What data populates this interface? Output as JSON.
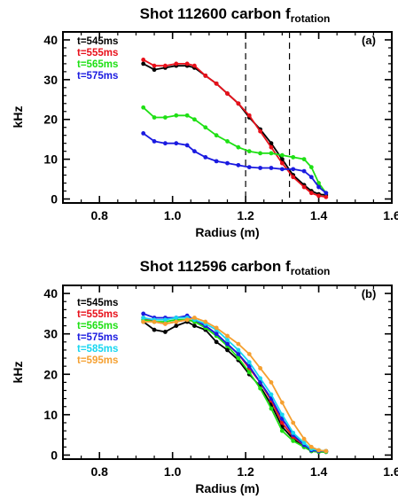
{
  "chart_data": [
    {
      "type": "line",
      "title_main": "Shot 112600 carbon f",
      "title_sub": "rotation",
      "panel_label": "(a)",
      "xlabel": "Radius (m)",
      "ylabel": "kHz",
      "xlim": [
        0.7,
        1.6
      ],
      "ylim": [
        -1,
        42
      ],
      "xticks": [
        "0.8",
        "1.0",
        "1.2",
        "1.4",
        "1.6"
      ],
      "yticks": [
        "0",
        "10",
        "20",
        "30",
        "40"
      ],
      "xtick_values": [
        0.8,
        1.0,
        1.2,
        1.4,
        1.6
      ],
      "ytick_values": [
        0,
        10,
        20,
        30,
        40
      ],
      "vlines": [
        1.2,
        1.32
      ],
      "legend_position": "top-left",
      "series": [
        {
          "name": "t=545ms",
          "color": "#000000",
          "x": [
            0.92,
            0.95,
            0.98,
            1.01,
            1.04,
            1.06,
            1.09,
            1.12,
            1.15,
            1.18,
            1.21,
            1.24,
            1.27,
            1.3,
            1.33,
            1.36,
            1.38,
            1.4,
            1.42
          ],
          "y": [
            34,
            32.5,
            33,
            33.5,
            33.5,
            33,
            31,
            29,
            26.5,
            24,
            20.5,
            17.5,
            14,
            10,
            6,
            3.5,
            2,
            1.2,
            1
          ]
        },
        {
          "name": "t=555ms",
          "color": "#e8101a",
          "x": [
            0.92,
            0.95,
            0.98,
            1.01,
            1.04,
            1.06,
            1.09,
            1.12,
            1.15,
            1.18,
            1.21,
            1.24,
            1.27,
            1.3,
            1.33,
            1.36,
            1.38,
            1.4,
            1.42
          ],
          "y": [
            35,
            33.5,
            33.5,
            34,
            34,
            33.5,
            31,
            29,
            26.5,
            24,
            21,
            17,
            13,
            9,
            5.5,
            3,
            1.5,
            0.8,
            0.5
          ]
        },
        {
          "name": "t=565ms",
          "color": "#1ee014",
          "x": [
            0.92,
            0.95,
            0.98,
            1.01,
            1.04,
            1.06,
            1.09,
            1.12,
            1.15,
            1.18,
            1.21,
            1.24,
            1.27,
            1.3,
            1.33,
            1.36,
            1.38,
            1.4,
            1.42
          ],
          "y": [
            23,
            20.5,
            20.5,
            21,
            21,
            20,
            18,
            16,
            14.5,
            13,
            12,
            11.5,
            11.5,
            11,
            10.5,
            10,
            8,
            4,
            1.5
          ]
        },
        {
          "name": "t=575ms",
          "color": "#1a1ae0",
          "x": [
            0.92,
            0.95,
            0.98,
            1.01,
            1.04,
            1.06,
            1.09,
            1.12,
            1.15,
            1.18,
            1.21,
            1.24,
            1.27,
            1.3,
            1.33,
            1.36,
            1.38,
            1.4,
            1.42
          ],
          "y": [
            16.5,
            14.5,
            14,
            14,
            13.5,
            12,
            10.5,
            9.5,
            9,
            8.5,
            8,
            7.8,
            7.8,
            7.5,
            7.5,
            7,
            5.5,
            3,
            1.5
          ]
        }
      ]
    },
    {
      "type": "line",
      "title_main": "Shot 112596 carbon f",
      "title_sub": "rotation",
      "panel_label": "(b)",
      "xlabel": "Radius (m)",
      "ylabel": "kHz",
      "xlim": [
        0.7,
        1.6
      ],
      "ylim": [
        -1,
        42
      ],
      "xticks": [
        "0.8",
        "1.0",
        "1.2",
        "1.4",
        "1.6"
      ],
      "yticks": [
        "0",
        "10",
        "20",
        "30",
        "40"
      ],
      "xtick_values": [
        0.8,
        1.0,
        1.2,
        1.4,
        1.6
      ],
      "ytick_values": [
        0,
        10,
        20,
        30,
        40
      ],
      "vlines": [],
      "legend_position": "top-left",
      "series": [
        {
          "name": "t=545ms",
          "color": "#000000",
          "x": [
            0.92,
            0.95,
            0.98,
            1.01,
            1.04,
            1.06,
            1.09,
            1.12,
            1.15,
            1.18,
            1.21,
            1.24,
            1.27,
            1.3,
            1.33,
            1.36,
            1.38,
            1.4,
            1.42
          ],
          "y": [
            33,
            31,
            30.5,
            32,
            33,
            32,
            31,
            28,
            26,
            23.5,
            20,
            17,
            12.5,
            7,
            4,
            2,
            1,
            0.8,
            0.8
          ]
        },
        {
          "name": "t=555ms",
          "color": "#e8101a",
          "x": [
            0.92,
            0.95,
            0.98,
            1.01,
            1.04,
            1.06,
            1.09,
            1.12,
            1.15,
            1.18,
            1.21,
            1.24,
            1.27,
            1.3,
            1.33,
            1.36,
            1.38,
            1.4,
            1.42
          ],
          "y": [
            34,
            33,
            32.5,
            33,
            33.5,
            33,
            32,
            30,
            27.5,
            25,
            21.5,
            18,
            13.5,
            8,
            4.5,
            2.5,
            1.2,
            1,
            0.8
          ]
        },
        {
          "name": "t=565ms",
          "color": "#1ee014",
          "x": [
            0.92,
            0.95,
            0.98,
            1.01,
            1.04,
            1.06,
            1.09,
            1.12,
            1.15,
            1.18,
            1.21,
            1.24,
            1.27,
            1.3,
            1.33,
            1.36,
            1.38,
            1.4,
            1.42
          ],
          "y": [
            33.5,
            33,
            33,
            33.5,
            33.5,
            33,
            31.5,
            29.5,
            27,
            24,
            20.5,
            16.5,
            11.5,
            6,
            3.5,
            2,
            1,
            0.8,
            0.8
          ]
        },
        {
          "name": "t=575ms",
          "color": "#1a1ae0",
          "x": [
            0.92,
            0.95,
            0.98,
            1.01,
            1.04,
            1.06,
            1.09,
            1.12,
            1.15,
            1.18,
            1.21,
            1.24,
            1.27,
            1.3,
            1.33,
            1.36,
            1.38,
            1.4,
            1.42
          ],
          "y": [
            35,
            34,
            34,
            34,
            34.5,
            33.5,
            32,
            30,
            27.5,
            25,
            22,
            18,
            14,
            9,
            5,
            2.5,
            1.2,
            1,
            1
          ]
        },
        {
          "name": "t=585ms",
          "color": "#18d6f0",
          "x": [
            0.92,
            0.95,
            0.98,
            1.01,
            1.04,
            1.06,
            1.09,
            1.12,
            1.15,
            1.18,
            1.21,
            1.24,
            1.27,
            1.3,
            1.33,
            1.36,
            1.38,
            1.4,
            1.42
          ],
          "y": [
            34,
            33.5,
            33.5,
            34,
            34,
            33.5,
            32.5,
            31,
            28.5,
            26,
            23,
            19,
            15,
            10,
            5.5,
            3,
            1.5,
            1.2,
            1
          ]
        },
        {
          "name": "t=595ms",
          "color": "#f5a030",
          "x": [
            0.92,
            0.95,
            0.98,
            1.01,
            1.04,
            1.06,
            1.09,
            1.12,
            1.15,
            1.18,
            1.21,
            1.24,
            1.27,
            1.3,
            1.33,
            1.36,
            1.38,
            1.4,
            1.42
          ],
          "y": [
            33,
            33,
            32.5,
            33,
            33.5,
            34,
            33,
            31.5,
            29.5,
            27.5,
            25,
            21.5,
            18,
            13,
            8,
            4,
            2,
            1.2,
            1
          ]
        }
      ]
    }
  ]
}
